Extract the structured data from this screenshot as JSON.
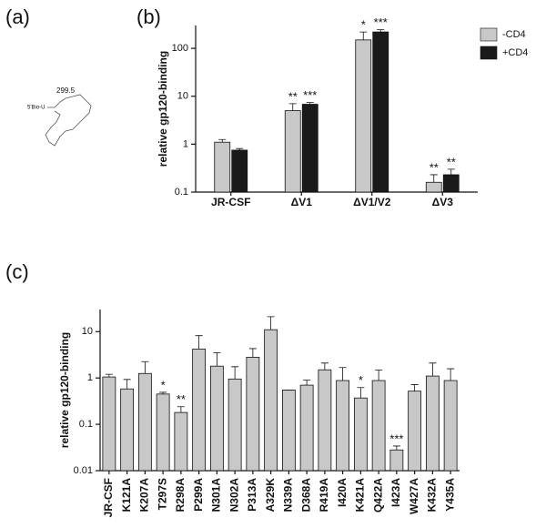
{
  "structure": {
    "label": "(a)",
    "annotation": "299.5",
    "start": "5'Bio-U"
  },
  "chart_data": [
    {
      "type": "bar",
      "panel": "(b)",
      "ylabel": "relative gp120-binding",
      "log": true,
      "categories": [
        "JR-CSF",
        "ΔV1",
        "ΔV1/V2",
        "ΔV3"
      ],
      "series": [
        {
          "name": "-CD4",
          "color": "#c8c8c8",
          "values": [
            1.1,
            5,
            150,
            0.16
          ],
          "errors": [
            0.15,
            2,
            70,
            0.07
          ],
          "significance": [
            null,
            "**",
            "*",
            "**"
          ]
        },
        {
          "name": "+CD4",
          "color": "#1a1a1a",
          "values": [
            0.75,
            6.8,
            220,
            0.23
          ],
          "errors": [
            0.06,
            0.6,
            25,
            0.07
          ],
          "significance": [
            null,
            "***",
            "***",
            "**"
          ]
        }
      ],
      "ylim": [
        0.1,
        300
      ],
      "yticks": [
        0.1,
        1,
        10,
        100
      ],
      "legend": "upper right"
    },
    {
      "type": "bar",
      "panel": "(c)",
      "ylabel": "relative gp120-binding",
      "log": true,
      "categories": [
        "JR-CSF",
        "K121A",
        "K207A",
        "T297S",
        "R298A",
        "P299A",
        "N301A",
        "N302A",
        "P313A",
        "A329K",
        "N339A",
        "D368A",
        "R419A",
        "I420A",
        "K421A",
        "Q422A",
        "I423A",
        "W427A",
        "K432A",
        "Y435A"
      ],
      "series": [
        {
          "color": "#c8c8c8",
          "values": [
            1.05,
            0.58,
            1.25,
            0.45,
            0.18,
            4.2,
            1.8,
            0.95,
            2.8,
            11,
            0.55,
            0.7,
            1.5,
            0.88,
            0.37,
            0.88,
            0.028,
            0.52,
            1.1,
            0.88
          ],
          "errors": [
            0.15,
            0.35,
            1.0,
            0.04,
            0.06,
            4,
            1.7,
            0.8,
            1.5,
            10,
            0,
            0.2,
            0.6,
            0.8,
            0.25,
            0.6,
            0.006,
            0.2,
            1.0,
            0.7
          ],
          "significance": [
            null,
            null,
            null,
            "*",
            "**",
            null,
            null,
            null,
            null,
            null,
            null,
            null,
            null,
            null,
            "*",
            null,
            "***",
            null,
            null,
            null
          ]
        }
      ],
      "ylim": [
        0.01,
        30
      ],
      "yticks": [
        0.01,
        0.1,
        1,
        10
      ]
    }
  ]
}
